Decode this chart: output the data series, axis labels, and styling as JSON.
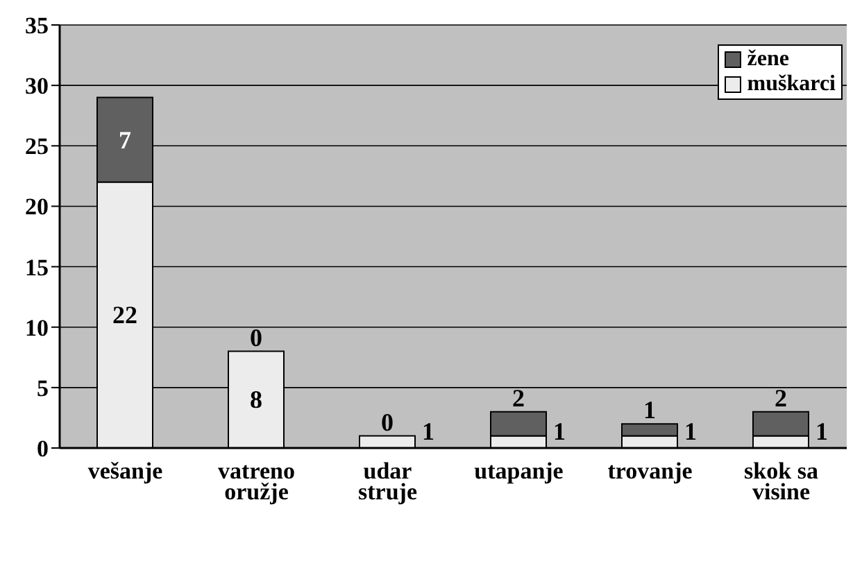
{
  "chart_data": {
    "type": "bar",
    "stacked": true,
    "categories": [
      "vešanje",
      "vatreno oružje",
      "udar struje",
      "utapanje",
      "trovanje",
      "skok sa visine"
    ],
    "series": [
      {
        "name": "muškarci",
        "color": "#ececec",
        "values": [
          22,
          8,
          1,
          1,
          1,
          1
        ]
      },
      {
        "name": "žene",
        "color": "#606060",
        "values": [
          7,
          0,
          0,
          2,
          1,
          2
        ]
      }
    ],
    "ylim": [
      0,
      35
    ],
    "yticks": [
      0,
      5,
      10,
      15,
      20,
      25,
      30,
      35
    ],
    "grid": "y",
    "legend": "top right",
    "data_labels": true
  }
}
